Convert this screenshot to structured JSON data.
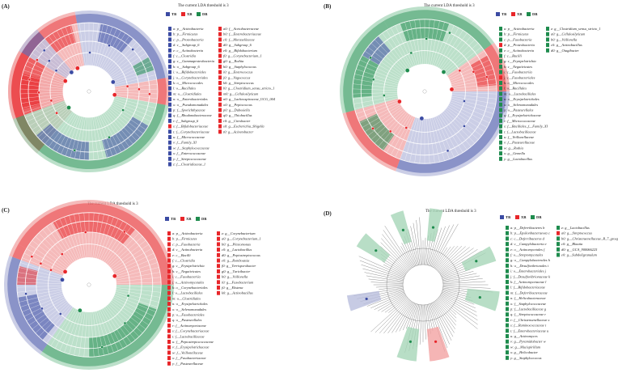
{
  "colors": {
    "TB": "#3b4ba3",
    "XB": "#e8262a",
    "DB": "#1f8c4e",
    "TB_bg": "#b9bedd",
    "XB_bg": "#f2a3a3",
    "DB_bg": "#a6d6b8"
  },
  "panels": [
    {
      "label": "(A)",
      "title": "The current LDA threshold is 3",
      "groups": [
        "TB",
        "XB",
        "DB"
      ],
      "legend_col1": [
        {
          "key": "a: p__Actinobacteria",
          "group": "TB"
        },
        {
          "key": "b: p__Firmicutes",
          "group": "TB"
        },
        {
          "key": "c: p__Proteobacteria",
          "group": "TB"
        },
        {
          "key": "d: c__Subgroup_6",
          "group": "TB"
        },
        {
          "key": "e: c__Actinobacteria",
          "group": "TB"
        },
        {
          "key": "f: c__Clostridia",
          "group": "TB"
        },
        {
          "key": "g: c__Gammaproteobacteria",
          "group": "TB"
        },
        {
          "key": "h: o__Subgroup_6",
          "group": "TB"
        },
        {
          "key": "i: o__Bifidobacteriales",
          "group": "TB"
        },
        {
          "key": "j: o__Corynebacteriales",
          "group": "TB"
        },
        {
          "key": "k: o__Micrococcales",
          "group": "TB"
        },
        {
          "key": "l: o__Bacillales",
          "group": "TB"
        },
        {
          "key": "m: o__Clostridiales",
          "group": "TB"
        },
        {
          "key": "n: o__Enterobacteriales",
          "group": "TB"
        },
        {
          "key": "o: o__Pseudomonadales",
          "group": "TB"
        },
        {
          "key": "p: f__Sporichthyaceae",
          "group": "TB"
        },
        {
          "key": "q: f__Rhodanobacteraceae",
          "group": "TB"
        },
        {
          "key": "r: f__Subgroup_6",
          "group": "TB"
        },
        {
          "key": "s: f__Bifidobacteriaceae",
          "group": "XB"
        },
        {
          "key": "t: f__Corynebacteriaceae",
          "group": "TB"
        },
        {
          "key": "u: f__Micrococcaceae",
          "group": "TB"
        },
        {
          "key": "v: f__Family_XI",
          "group": "TB"
        },
        {
          "key": "w: f__Staphylococcaceae",
          "group": "TB"
        },
        {
          "key": "x: f__Enterococcaceae",
          "group": "TB"
        },
        {
          "key": "y: f__Streptococcaceae",
          "group": "TB"
        },
        {
          "key": "z: f__Clostridiaceae_1",
          "group": "TB"
        }
      ],
      "legend_col2": [
        {
          "key": "a0: f__Acetobacteraceae",
          "group": "XB"
        },
        {
          "key": "b0: f__Enterobacteriaceae",
          "group": "XB"
        },
        {
          "key": "c0: f__Moraxellaceae",
          "group": "XB"
        },
        {
          "key": "d0: g__Subgroup_6",
          "group": "XB"
        },
        {
          "key": "e0: g__Bifidobacterium",
          "group": "XB"
        },
        {
          "key": "f0: g__Corynebacterium_1",
          "group": "XB"
        },
        {
          "key": "g0: g__Rothia",
          "group": "XB"
        },
        {
          "key": "h0: g__Staphylococcus",
          "group": "XB"
        },
        {
          "key": "i0: g__Enterococcus",
          "group": "XB"
        },
        {
          "key": "j0: g__Vagococcus",
          "group": "XB"
        },
        {
          "key": "k0: g__Streptococcus",
          "group": "XB"
        },
        {
          "key": "l0: g__Clostridium_sensu_stricto_1",
          "group": "XB"
        },
        {
          "key": "m0: g__Cellulosilyticum",
          "group": "XB"
        },
        {
          "key": "n0: g__Lachnospiraceae_UCG_004",
          "group": "XB"
        },
        {
          "key": "o0: g__Peptococcus",
          "group": "XB"
        },
        {
          "key": "p0: g__Dubosiella",
          "group": "XB"
        },
        {
          "key": "q0: g__Thiobacillus",
          "group": "XB"
        },
        {
          "key": "r0: g__Citrobacter",
          "group": "XB"
        },
        {
          "key": "s0: g__Escherichia_Shigella",
          "group": "XB"
        },
        {
          "key": "t0: g__Acinetobacter",
          "group": "XB"
        }
      ]
    },
    {
      "label": "(B)",
      "title": "The current LDA threshold is 3",
      "groups": [
        "TB",
        "XB",
        "DB"
      ],
      "legend_col1": [
        {
          "key": "a: p__Actinobacteria",
          "group": "DB"
        },
        {
          "key": "b: p__Firmicutes",
          "group": "DB"
        },
        {
          "key": "c: p__Fusobacteria",
          "group": "DB"
        },
        {
          "key": "d: p__Proteobacteria",
          "group": "XB"
        },
        {
          "key": "e: c__Actinobacteria",
          "group": "DB"
        },
        {
          "key": "f: c__Bacilli",
          "group": "DB"
        },
        {
          "key": "g: c__Erysipelotrichia",
          "group": "DB"
        },
        {
          "key": "h: c__Negativicutes",
          "group": "DB"
        },
        {
          "key": "i: c__Fusobacteriia",
          "group": "DB"
        },
        {
          "key": "j: c__Fusobacteriales",
          "group": "XB"
        },
        {
          "key": "k: o__Micrococcales",
          "group": "DB"
        },
        {
          "key": "l: o__Bacillales",
          "group": "DB"
        },
        {
          "key": "m: o__Lactobacillales",
          "group": "DB"
        },
        {
          "key": "n: o__Erysipelotrichales",
          "group": "DB"
        },
        {
          "key": "o: o__Selenomonadales",
          "group": "DB"
        },
        {
          "key": "p: o__Pasteurellales",
          "group": "DB"
        },
        {
          "key": "q: f__Erysipelotrichaceae",
          "group": "DB"
        },
        {
          "key": "r: f__Micrococcaceae",
          "group": "DB"
        },
        {
          "key": "s: f__Bacillales_f__Family_XI",
          "group": "DB"
        },
        {
          "key": "t: f__Lactobacillaceae",
          "group": "DB"
        },
        {
          "key": "u: f__Veillonellaceae",
          "group": "DB"
        },
        {
          "key": "v: f__Pasteurellaceae",
          "group": "DB"
        },
        {
          "key": "w: g__Rothia",
          "group": "DB"
        },
        {
          "key": "x: g__Gemella",
          "group": "DB"
        },
        {
          "key": "y: g__Lactobacillus",
          "group": "DB"
        }
      ],
      "legend_col2": [
        {
          "key": "z: g__Clostridium_sensu_stricto_1",
          "group": "DB"
        },
        {
          "key": "a0: g__Cellulosilyticum",
          "group": "DB"
        },
        {
          "key": "b0: g__Veillonella",
          "group": "DB"
        },
        {
          "key": "c0: g__Actinobacillus",
          "group": "DB"
        },
        {
          "key": "d0: g__Otagibacter",
          "group": "DB"
        }
      ]
    },
    {
      "label": "(C)",
      "title": "The current LDA threshold is 3",
      "groups": [
        "TB",
        "XB",
        "DB"
      ],
      "legend_col1": [
        {
          "key": "a: p__Actinobacteria",
          "group": "XB"
        },
        {
          "key": "b: p__Firmicutes",
          "group": "XB"
        },
        {
          "key": "c: p__Fusobacteria",
          "group": "XB"
        },
        {
          "key": "d: c__Actinobacteria",
          "group": "XB"
        },
        {
          "key": "e: c__Bacilli",
          "group": "XB"
        },
        {
          "key": "f: c__Clostridia",
          "group": "XB"
        },
        {
          "key": "g: c__Erysipelotrichia",
          "group": "XB"
        },
        {
          "key": "h: c__Negativicutes",
          "group": "XB"
        },
        {
          "key": "i: c__Fusobacteriia",
          "group": "XB"
        },
        {
          "key": "j: o__Actinomycetales",
          "group": "XB"
        },
        {
          "key": "k: o__Corynebacteriales",
          "group": "XB"
        },
        {
          "key": "l: o__Lactobacillales",
          "group": "XB"
        },
        {
          "key": "m: o__Clostridiales",
          "group": "XB"
        },
        {
          "key": "n: o__Erysipelotrichales",
          "group": "XB"
        },
        {
          "key": "o: o__Selenomonadales",
          "group": "XB"
        },
        {
          "key": "p: o__Fusobacteriales",
          "group": "XB"
        },
        {
          "key": "q: o__Pasteurellales",
          "group": "XB"
        },
        {
          "key": "r: f__Actinomycetaceae",
          "group": "XB"
        },
        {
          "key": "s: f__Corynebacteriaceae",
          "group": "XB"
        },
        {
          "key": "t: f__Lactobacillaceae",
          "group": "XB"
        },
        {
          "key": "u: f__Peptostreptococcaceae",
          "group": "XB"
        },
        {
          "key": "v: f__Erysipelotrichaceae",
          "group": "XB"
        },
        {
          "key": "w: f__Veillonellaceae",
          "group": "XB"
        },
        {
          "key": "x: f__Fusobacteriaceae",
          "group": "XB"
        },
        {
          "key": "y: f__Pasteurellaceae",
          "group": "XB"
        }
      ],
      "legend_col2": [
        {
          "key": "z: g__Corynebacterium",
          "group": "XB"
        },
        {
          "key": "a0: g__Corynebacterium_1",
          "group": "XB"
        },
        {
          "key": "b0: g__Plesiomonas",
          "group": "XB"
        },
        {
          "key": "c0: g__Lactobacillus",
          "group": "XB"
        },
        {
          "key": "d0: g__Peptostreptococcus",
          "group": "XB"
        },
        {
          "key": "e0: g__Romboutsia",
          "group": "XB"
        },
        {
          "key": "f0: g__Terrisporobacter",
          "group": "XB"
        },
        {
          "key": "g0: g__Turicibacter",
          "group": "XB"
        },
        {
          "key": "h0: g__Veillonella",
          "group": "XB"
        },
        {
          "key": "i0: g__Fusobacterium",
          "group": "XB"
        },
        {
          "key": "j0: g__Ekstena",
          "group": "XB"
        },
        {
          "key": "k0: g__Actinobacillus",
          "group": "XB"
        }
      ]
    },
    {
      "label": "(D)",
      "title": "The current LDA threshold is 3",
      "groups": [
        "TB",
        "XB",
        "DB"
      ],
      "legend_col1": [
        {
          "key": "a: p__Deferribacteres b",
          "group": "DB"
        },
        {
          "key": "b: p__Epsilonbacteraeota c",
          "group": "DB"
        },
        {
          "key": "c: c__Deferribacteres d",
          "group": "DB"
        },
        {
          "key": "d: c__Campylobacteria e",
          "group": "DB"
        },
        {
          "key": "e: o__Actinomycetales f",
          "group": "DB"
        },
        {
          "key": "f: o__Streptomycetales",
          "group": "DB"
        },
        {
          "key": "g: o__Campylobacterales h",
          "group": "DB"
        },
        {
          "key": "h: o__Desulfovibrionales i",
          "group": "DB"
        },
        {
          "key": "i: o__Enterobacteriales j",
          "group": "DB"
        },
        {
          "key": "j: f__Desulfovibrionaceae k",
          "group": "DB"
        },
        {
          "key": "k: f__Actinomycetaceae l",
          "group": "DB"
        },
        {
          "key": "l: f__Bifidobacteriaceae",
          "group": "DB"
        },
        {
          "key": "m: f__Deferribacteraceae",
          "group": "DB"
        },
        {
          "key": "n: f__Helicobacteraceae",
          "group": "DB"
        },
        {
          "key": "o: f__Staphylococcaceae",
          "group": "DB"
        },
        {
          "key": "p: f__Lactobacillaceae g",
          "group": "DB"
        },
        {
          "key": "q: f__Streptococcaceae r",
          "group": "DB"
        },
        {
          "key": "r: f__Christensenellaceae s",
          "group": "DB"
        },
        {
          "key": "s: f__Ruminococcaceae t",
          "group": "DB"
        },
        {
          "key": "t: f__Enterobacteriaceae u",
          "group": "DB"
        },
        {
          "key": "u: g__Actinomyces",
          "group": "DB"
        },
        {
          "key": "v: g__Pyramidobacter w",
          "group": "DB"
        },
        {
          "key": "w: g__Mucispirillum",
          "group": "DB"
        },
        {
          "key": "x: g__Helicobacter",
          "group": "DB"
        },
        {
          "key": "y: g__Staphylococcus",
          "group": "DB"
        }
      ],
      "legend_col2": [
        {
          "key": "z: g__Lactobacillus",
          "group": "DB"
        },
        {
          "key": "a0: g__Streptococcus",
          "group": "XB"
        },
        {
          "key": "b0: g__Christensenellaceae_R_7_group",
          "group": "DB"
        },
        {
          "key": "c0: g__Blautia",
          "group": "DB"
        },
        {
          "key": "d0: g__GCA_900066225",
          "group": "DB"
        },
        {
          "key": "e0: g__Subdoligranulum",
          "group": "DB"
        }
      ]
    }
  ]
}
